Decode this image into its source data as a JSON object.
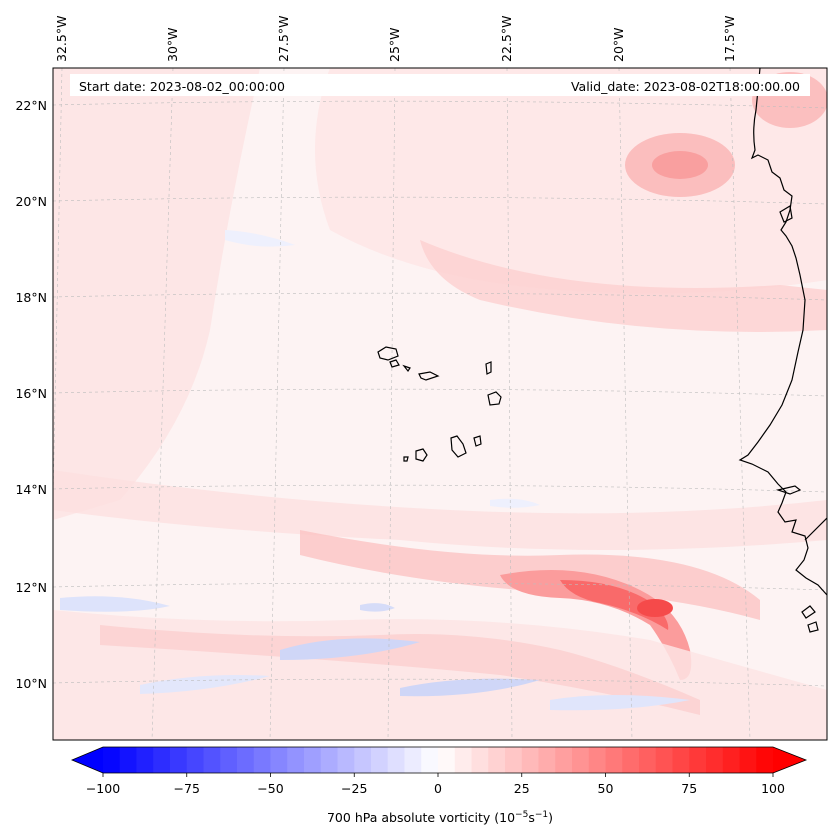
{
  "map": {
    "start_date": "Start date: 2023-08-02_00:00:00",
    "valid_date": "Valid_date: 2023-08-02T18:00:00.00",
    "lon_labels": [
      "32.5°W",
      "30°W",
      "27.5°W",
      "25°W",
      "22.5°W",
      "20°W",
      "17.5°W"
    ],
    "lat_labels": [
      "22°N",
      "20°N",
      "18°N",
      "16°N",
      "14°N",
      "12°N",
      "10°N"
    ],
    "lat_values": [
      22,
      20,
      18,
      16,
      14,
      12,
      10
    ],
    "lon_values": [
      -32.5,
      -30,
      -27.5,
      -25,
      -22.5,
      -20,
      -17.5
    ]
  },
  "colorbar": {
    "label": "700 hPa absolute vorticity (10",
    "label_exp": "−5",
    "label_mid": "s",
    "label_exp2": "−1",
    "label_end": ")",
    "min": -100,
    "max": 100,
    "ticks": [
      -100,
      -75,
      -50,
      -25,
      0,
      25,
      50,
      75,
      100
    ],
    "tick_labels": [
      "−100",
      "−75",
      "−50",
      "−25",
      "0",
      "25",
      "50",
      "75",
      "100"
    ],
    "colors": {
      "negative": "#0000ff",
      "zero": "#ffffff",
      "positive": "#ff0000"
    }
  }
}
